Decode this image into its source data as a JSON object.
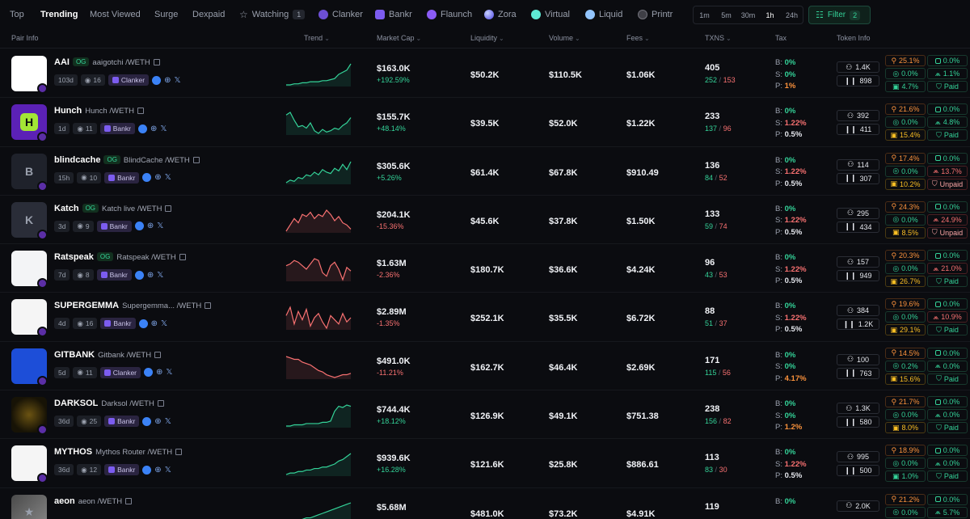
{
  "nav": {
    "tabs": [
      {
        "label": "Top",
        "active": false
      },
      {
        "label": "Trending",
        "active": true
      },
      {
        "label": "Most Viewed",
        "active": false
      },
      {
        "label": "Surge",
        "active": false
      },
      {
        "label": "Dexpaid",
        "active": false
      },
      {
        "label": "Watching",
        "count": "1",
        "icon": "star-icon"
      },
      {
        "label": "Clanker",
        "icon": "clanker-icon"
      },
      {
        "label": "Bankr",
        "icon": "bankr-icon"
      },
      {
        "label": "Flaunch",
        "icon": "flaunch-icon"
      },
      {
        "label": "Zora",
        "icon": "zora-icon"
      },
      {
        "label": "Virtual",
        "icon": "virtual-icon"
      },
      {
        "label": "Liquid",
        "icon": "liquid-icon"
      },
      {
        "label": "Printr",
        "icon": "printr-icon"
      }
    ],
    "timeframes": [
      "1m",
      "5m",
      "30m",
      "1h",
      "24h"
    ],
    "active_timeframe": "1h",
    "filter_label": "Filter",
    "filter_count": "2"
  },
  "columns": {
    "pair_info": "Pair Info",
    "trend": "Trend",
    "market_cap": "Market Cap",
    "liquidity": "Liquidity",
    "volume": "Volume",
    "fees": "Fees",
    "txns": "TXNS",
    "tax": "Tax",
    "token_info": "Token Info"
  },
  "colors": {
    "accent": "#34d399",
    "negative": "#f87171",
    "warning": "#fb923c",
    "background": "#0b0c10"
  },
  "rows": [
    {
      "symbol": "AAI",
      "og": "OG",
      "name": "aaigotchi /WETH",
      "age": "103d",
      "views": "16",
      "dex": "Clanker",
      "trend": "up",
      "trend_values": [
        10,
        10,
        11,
        11,
        12,
        12,
        13,
        13,
        13,
        14,
        14,
        15,
        16,
        20,
        22,
        24,
        30
      ],
      "mcap": "$163.0K",
      "mcap_change": "+192.59%",
      "mcap_dir": "up",
      "liquidity": "$50.2K",
      "volume": "$110.5K",
      "fees": "$1.06K",
      "txns": "405",
      "buys": "252",
      "sells": "153",
      "tax_b": "0%",
      "tax_s": "0%",
      "tax_p": "1%",
      "holders": "1.4K",
      "holders_b": "898",
      "s1": "25.1%",
      "s2": "0.0%",
      "s3": "0.0%",
      "s4": "1.1%",
      "s5": "4.7%",
      "s6": "Paid"
    },
    {
      "symbol": "Hunch",
      "og": "",
      "name": "Hunch /WETH",
      "age": "1d",
      "views": "11",
      "dex": "Bankr",
      "trend": "up",
      "trend_values": [
        24,
        26,
        20,
        15,
        16,
        14,
        18,
        12,
        10,
        13,
        11,
        12,
        14,
        13,
        16,
        18,
        22
      ],
      "mcap": "$155.7K",
      "mcap_change": "+48.14%",
      "mcap_dir": "up",
      "liquidity": "$39.5K",
      "volume": "$52.0K",
      "fees": "$1.22K",
      "txns": "233",
      "buys": "137",
      "sells": "96",
      "tax_b": "0%",
      "tax_s": "1.22%",
      "tax_p": "0.5%",
      "holders": "392",
      "holders_b": "411",
      "s1": "21.6%",
      "s2": "0.0%",
      "s3": "0.0%",
      "s4": "4.8%",
      "s5": "15.4%",
      "s6": "Paid"
    },
    {
      "symbol": "blindcache",
      "og": "OG",
      "name": "BlindCache /WETH",
      "age": "15h",
      "views": "10",
      "dex": "Bankr",
      "trend": "up",
      "trend_values": [
        10,
        12,
        11,
        14,
        13,
        16,
        15,
        18,
        16,
        20,
        18,
        17,
        21,
        19,
        24,
        20,
        26
      ],
      "mcap": "$305.6K",
      "mcap_change": "+5.26%",
      "mcap_dir": "up",
      "liquidity": "$61.4K",
      "volume": "$67.8K",
      "fees": "$910.49",
      "txns": "136",
      "buys": "84",
      "sells": "52",
      "tax_b": "0%",
      "tax_s": "1.22%",
      "tax_p": "0.5%",
      "holders": "114",
      "holders_b": "307",
      "s1": "17.4%",
      "s2": "0.0%",
      "s3": "0.0%",
      "s4": "13.7%",
      "s5": "10.2%",
      "s6": "Unpaid"
    },
    {
      "symbol": "Katch",
      "og": "OG",
      "name": "Katch live /WETH",
      "age": "3d",
      "views": "9",
      "dex": "Bankr",
      "trend": "down",
      "trend_values": [
        14,
        17,
        20,
        18,
        22,
        21,
        23,
        20,
        22,
        21,
        24,
        22,
        19,
        21,
        18,
        17,
        15
      ],
      "mcap": "$204.1K",
      "mcap_change": "-15.36%",
      "mcap_dir": "down",
      "liquidity": "$45.6K",
      "volume": "$37.8K",
      "fees": "$1.50K",
      "txns": "133",
      "buys": "59",
      "sells": "74",
      "tax_b": "0%",
      "tax_s": "1.22%",
      "tax_p": "0.5%",
      "holders": "295",
      "holders_b": "434",
      "s1": "24.3%",
      "s2": "0.0%",
      "s3": "0.0%",
      "s4": "24.9%",
      "s5": "8.5%",
      "s6": "Unpaid"
    },
    {
      "symbol": "Ratspeak",
      "og": "OG",
      "name": "Ratspeak /WETH",
      "age": "7d",
      "views": "8",
      "dex": "Bankr",
      "trend": "down",
      "trend_values": [
        20,
        21,
        23,
        22,
        20,
        18,
        21,
        24,
        23,
        16,
        14,
        20,
        22,
        18,
        12,
        19,
        17
      ],
      "mcap": "$1.63M",
      "mcap_change": "-2.36%",
      "mcap_dir": "down",
      "liquidity": "$180.7K",
      "volume": "$36.6K",
      "fees": "$4.24K",
      "txns": "96",
      "buys": "43",
      "sells": "53",
      "tax_b": "0%",
      "tax_s": "1.22%",
      "tax_p": "0.5%",
      "holders": "157",
      "holders_b": "949",
      "s1": "20.3%",
      "s2": "0.0%",
      "s3": "0.0%",
      "s4": "21.0%",
      "s5": "26.7%",
      "s6": "Paid"
    },
    {
      "symbol": "SUPERGEMMA",
      "og": "",
      "name": "Supergemma... /WETH",
      "age": "4d",
      "views": "16",
      "dex": "Bankr",
      "trend": "down",
      "trend_values": [
        18,
        22,
        14,
        20,
        16,
        21,
        13,
        17,
        19,
        15,
        12,
        18,
        16,
        14,
        19,
        15,
        17
      ],
      "mcap": "$2.89M",
      "mcap_change": "-1.35%",
      "mcap_dir": "down",
      "liquidity": "$252.1K",
      "volume": "$35.5K",
      "fees": "$6.72K",
      "txns": "88",
      "buys": "51",
      "sells": "37",
      "tax_b": "0%",
      "tax_s": "1.22%",
      "tax_p": "0.5%",
      "holders": "384",
      "holders_b": "1.2K",
      "s1": "19.6%",
      "s2": "0.0%",
      "s3": "0.0%",
      "s4": "10.9%",
      "s5": "29.1%",
      "s6": "Paid"
    },
    {
      "symbol": "GITBANK",
      "og": "",
      "name": "Gitbank /WETH",
      "age": "5d",
      "views": "11",
      "dex": "Clanker",
      "trend": "down",
      "trend_values": [
        26,
        25,
        24,
        24,
        22,
        21,
        20,
        18,
        16,
        15,
        13,
        12,
        11,
        12,
        13,
        13,
        14
      ],
      "mcap": "$491.0K",
      "mcap_change": "-11.21%",
      "mcap_dir": "down",
      "liquidity": "$162.7K",
      "volume": "$46.4K",
      "fees": "$2.69K",
      "txns": "171",
      "buys": "115",
      "sells": "56",
      "tax_b": "0%",
      "tax_s": "0%",
      "tax_p": "4.17%",
      "holders": "100",
      "holders_b": "763",
      "s1": "14.5%",
      "s2": "0.0%",
      "s3": "0.2%",
      "s4": "0.0%",
      "s5": "15.6%",
      "s6": "Paid"
    },
    {
      "symbol": "DARKSOL",
      "og": "",
      "name": "Darksol /WETH",
      "age": "36d",
      "views": "25",
      "dex": "Bankr",
      "trend": "up",
      "trend_values": [
        10,
        10,
        11,
        11,
        11,
        12,
        12,
        12,
        12,
        13,
        13,
        14,
        22,
        26,
        25,
        27,
        26
      ],
      "mcap": "$744.4K",
      "mcap_change": "+18.12%",
      "mcap_dir": "up",
      "liquidity": "$126.9K",
      "volume": "$49.1K",
      "fees": "$751.38",
      "txns": "238",
      "buys": "156",
      "sells": "82",
      "tax_b": "0%",
      "tax_s": "0%",
      "tax_p": "1.2%",
      "holders": "1.3K",
      "holders_b": "580",
      "s1": "21.7%",
      "s2": "0.0%",
      "s3": "0.0%",
      "s4": "0.0%",
      "s5": "8.0%",
      "s6": "Paid"
    },
    {
      "symbol": "MYTHOS",
      "og": "",
      "name": "Mythos Router /WETH",
      "age": "36d",
      "views": "12",
      "dex": "Bankr",
      "trend": "up",
      "trend_values": [
        10,
        11,
        11,
        12,
        12,
        13,
        13,
        14,
        14,
        15,
        15,
        16,
        17,
        19,
        20,
        22,
        24
      ],
      "mcap": "$939.6K",
      "mcap_change": "+16.28%",
      "mcap_dir": "up",
      "liquidity": "$121.6K",
      "volume": "$25.8K",
      "fees": "$886.61",
      "txns": "113",
      "buys": "83",
      "sells": "30",
      "tax_b": "0%",
      "tax_s": "1.22%",
      "tax_p": "0.5%",
      "holders": "995",
      "holders_b": "500",
      "s1": "18.9%",
      "s2": "0.0%",
      "s3": "0.0%",
      "s4": "0.0%",
      "s5": "1.0%",
      "s6": "Paid"
    },
    {
      "symbol": "aeon",
      "og": "",
      "name": "aeon /WETH",
      "age": "",
      "views": "",
      "dex": "",
      "trend": "up",
      "trend_values": [
        12,
        13,
        14,
        14,
        15,
        16,
        16,
        17,
        18,
        19,
        20,
        21,
        22,
        23,
        24,
        25,
        26
      ],
      "mcap": "$5.68M",
      "mcap_change": "",
      "mcap_dir": "up",
      "liquidity": "$481.0K",
      "volume": "$73.2K",
      "fees": "$4.91K",
      "txns": "119",
      "buys": "",
      "sells": "",
      "tax_b": "0%",
      "tax_s": "",
      "tax_p": "",
      "holders": "2.0K",
      "holders_b": "",
      "s1": "21.2%",
      "s2": "0.0%",
      "s3": "0.0%",
      "s4": "5.7%",
      "s5": "",
      "s6": ""
    }
  ]
}
